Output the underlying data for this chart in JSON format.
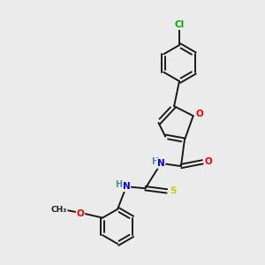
{
  "background_color": "#ebebeb",
  "bond_color": "#1a1a1a",
  "figsize": [
    3.0,
    3.0
  ],
  "dpi": 100,
  "atom_colors": {
    "O": "#ff0000",
    "N": "#0000ff",
    "S": "#cccc00",
    "Cl": "#00aa00",
    "C": "#1a1a1a",
    "H": "#4a9090"
  }
}
